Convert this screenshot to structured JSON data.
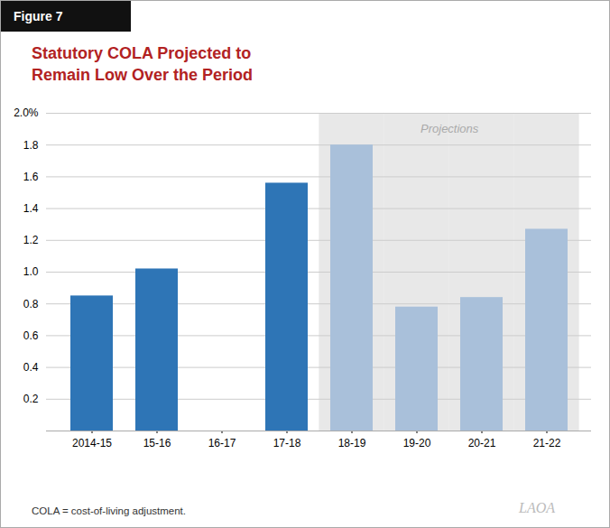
{
  "chart_data": {
    "type": "bar",
    "figure_label": "Figure 7",
    "title": "Statutory COLA Projected to\nRemain Low Over the Period",
    "categories": [
      "2014-15",
      "15-16",
      "16-17",
      "17-18",
      "18-19",
      "19-20",
      "20-21",
      "21-22"
    ],
    "values": [
      0.85,
      1.02,
      0.0,
      1.56,
      1.8,
      0.78,
      0.84,
      1.27
    ],
    "colors": [
      "#2e75b6",
      "#2e75b6",
      "#2e75b6",
      "#2e75b6",
      "#a9c0da",
      "#a9c0da",
      "#a9c0da",
      "#a9c0da"
    ],
    "ylim": [
      0,
      2.0
    ],
    "yticks": [
      {
        "value": 0.0,
        "label": ""
      },
      0.2,
      0.4,
      0.6,
      0.8,
      {
        "value": 1.0,
        "label": "1.0"
      },
      0.2,
      1.2,
      1.4,
      1.6,
      1.8,
      {
        "value": 2.0,
        "label": "2.0%"
      }
    ],
    "grid": true,
    "annotations": [
      {
        "text": "Projections",
        "from": "18-19",
        "to": "21-22",
        "color": "#e8e8e8"
      }
    ],
    "footnote": "COLA = cost-of-living adjustment.",
    "logo": "LAOA"
  }
}
